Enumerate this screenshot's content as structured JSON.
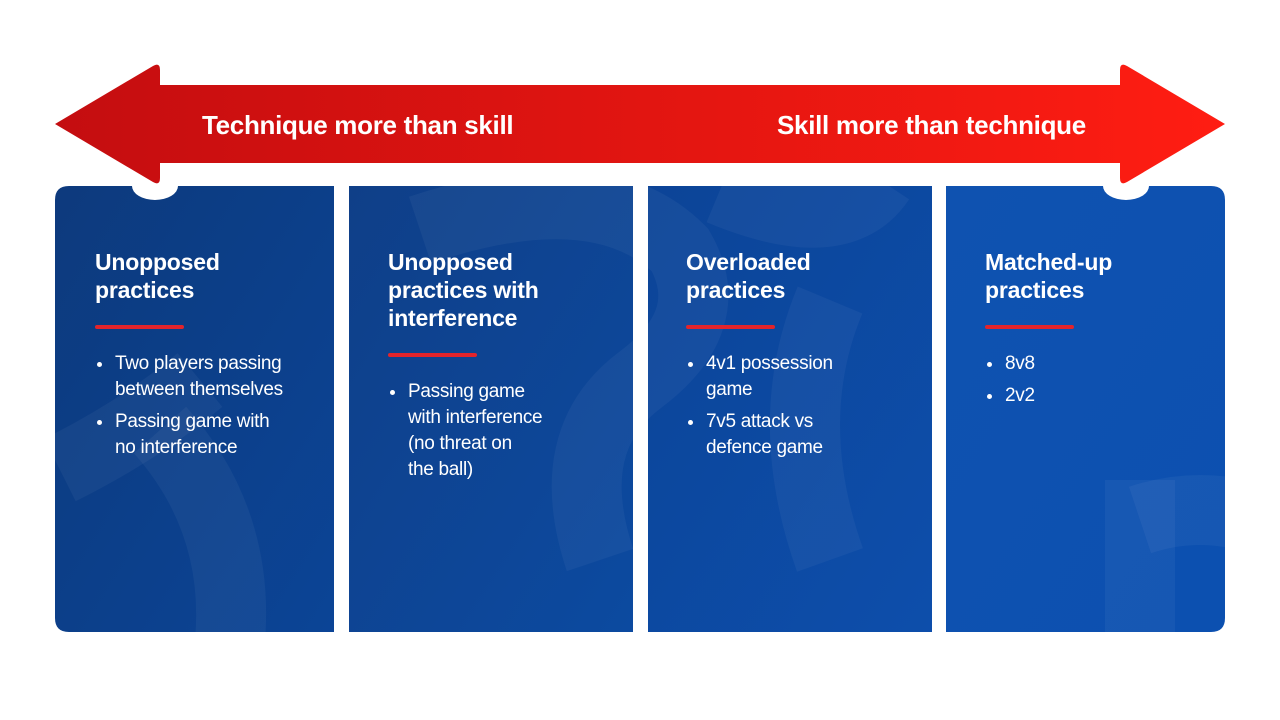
{
  "arrow": {
    "left_label": "Technique more than skill",
    "right_label": "Skill more than technique"
  },
  "colors": {
    "arrow_start": "#c40d10",
    "arrow_end": "#ff1d12",
    "card_dark": "#0d3a7d",
    "card_light": "#0f54b3",
    "accent_rule": "#e3242b"
  },
  "cards": [
    {
      "title_lines": [
        "Unopposed",
        "practices"
      ],
      "bullets": [
        [
          "Two players passing",
          "between themselves"
        ],
        [
          "Passing game with",
          "no interference"
        ]
      ]
    },
    {
      "title_lines": [
        "Unopposed",
        "practices with",
        "interference"
      ],
      "bullets": [
        [
          "Passing game",
          "with interference",
          "(no threat on",
          "the ball)"
        ]
      ]
    },
    {
      "title_lines": [
        "Overloaded",
        "practices"
      ],
      "bullets": [
        [
          "4v1 possession",
          "game"
        ],
        [
          "7v5 attack vs",
          "defence game"
        ]
      ]
    },
    {
      "title_lines": [
        "Matched-up",
        "practices"
      ],
      "bullets": [
        [
          "8v8"
        ],
        [
          "2v2"
        ]
      ]
    }
  ]
}
